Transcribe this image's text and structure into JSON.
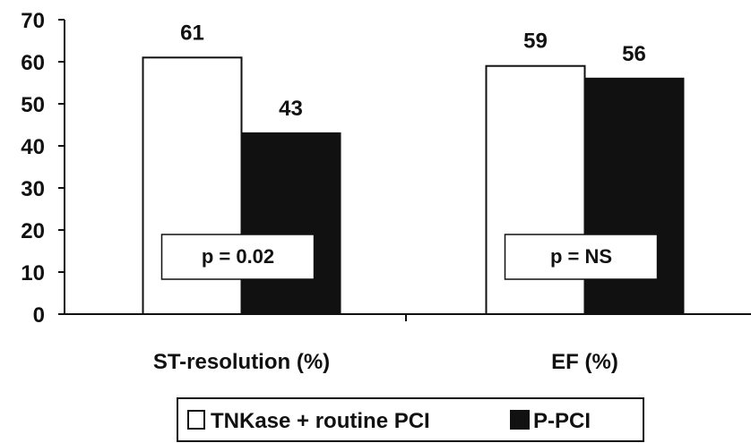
{
  "chart_data": {
    "type": "bar",
    "title": "",
    "xlabel": "",
    "ylabel": "",
    "ylim": [
      0,
      70
    ],
    "yticks": [
      0,
      10,
      20,
      30,
      40,
      50,
      60,
      70
    ],
    "grid": false,
    "categories": [
      "ST-resolution (%)",
      "EF (%)"
    ],
    "series": [
      {
        "name": "TNKase + routine PCI",
        "values": [
          61,
          59
        ],
        "color": "#ffffff"
      },
      {
        "name": "P-PCI",
        "values": [
          43,
          56
        ],
        "color": "#111111"
      }
    ],
    "annotations": [
      "p = 0.02",
      "p = NS"
    ],
    "legend_position": "bottom-center"
  }
}
